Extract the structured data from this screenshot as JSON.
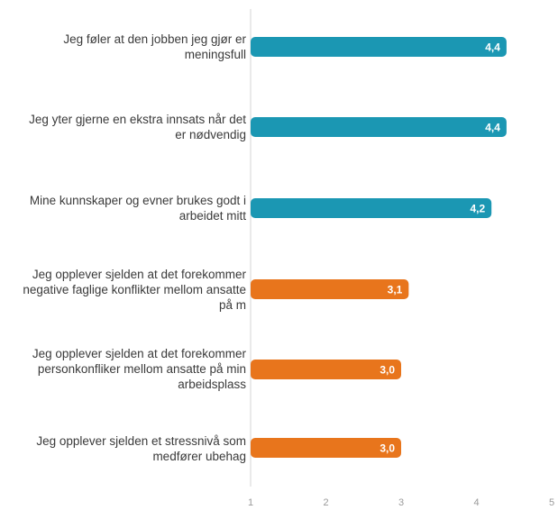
{
  "chart_data": {
    "type": "bar",
    "orientation": "horizontal",
    "categories": [
      "Jeg føler at den jobben jeg gjør er meningsfull",
      "Jeg yter gjerne en ekstra innsats når det er nødvendig",
      "Mine kunnskaper og evner brukes godt i arbeidet mitt",
      "Jeg opplever sjelden at det forekommer negative faglige konflikter mellom ansatte på m",
      "Jeg opplever sjelden at det forekommer personkonfliker mellom ansatte på min arbeidsplass",
      "Jeg opplever sjelden et stressnivå som medfører ubehag"
    ],
    "values": [
      4.4,
      4.4,
      4.2,
      3.1,
      3.0,
      3.0
    ],
    "value_labels": [
      "4,4",
      "4,4",
      "4,2",
      "3,1",
      "3,0",
      "3,0"
    ],
    "bar_colors": [
      "#1b97b3",
      "#1b97b3",
      "#1b97b3",
      "#e8751c",
      "#e8751c",
      "#e8751c"
    ],
    "xlim": [
      1,
      5
    ],
    "x_ticks": [
      "1",
      "2",
      "3",
      "4",
      "5"
    ],
    "title": "",
    "xlabel": "",
    "ylabel": "",
    "grid": false,
    "legend": "none"
  }
}
